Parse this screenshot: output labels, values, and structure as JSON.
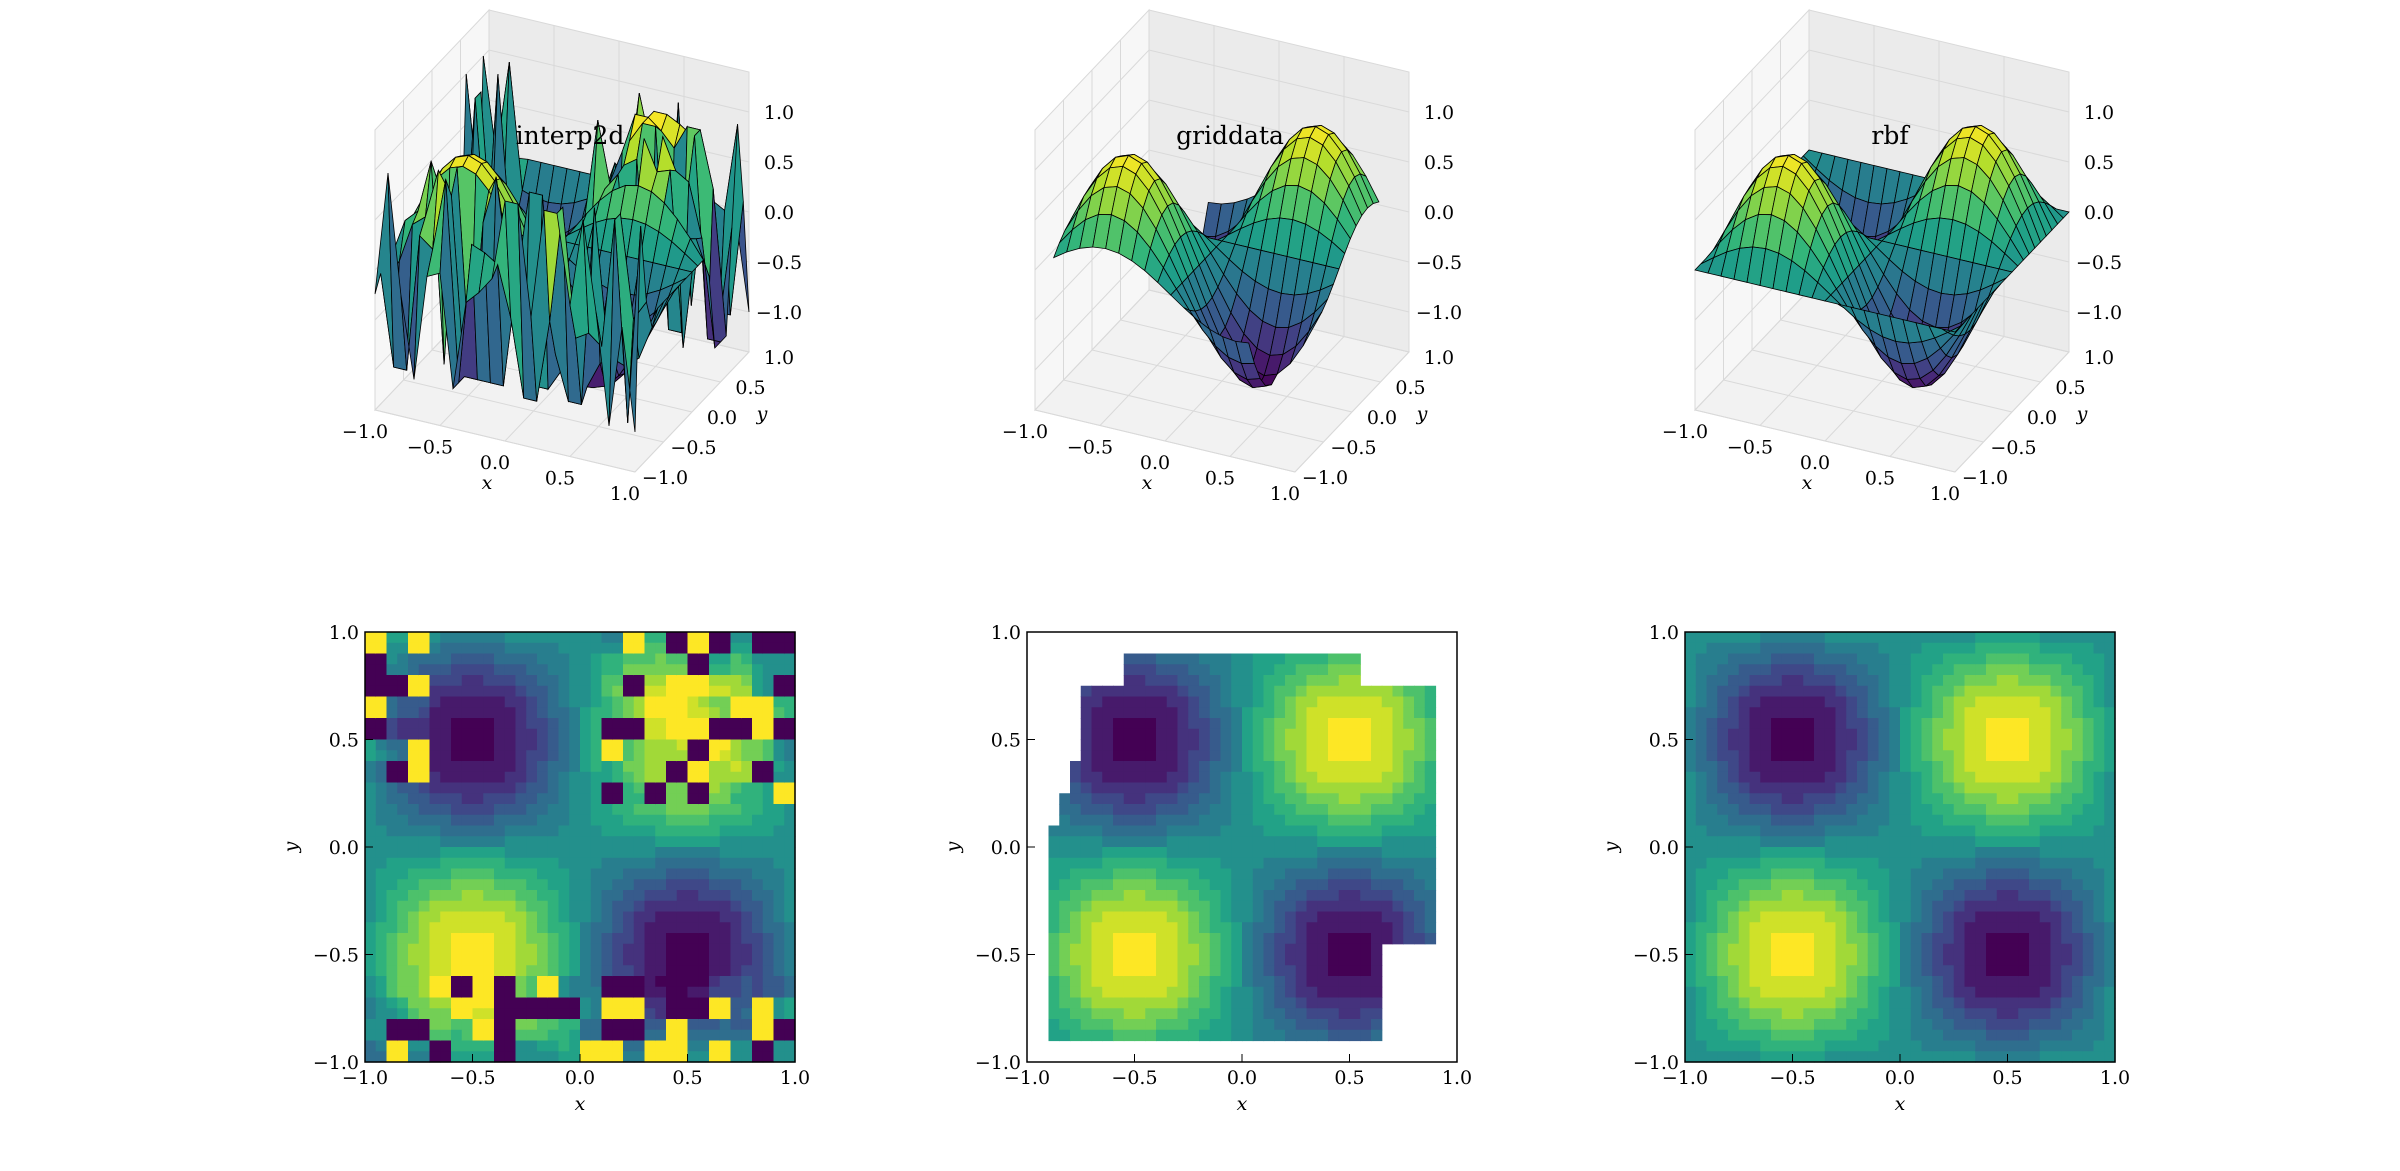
{
  "chart_data": [
    {
      "type": "surface3d",
      "title": "interp2d",
      "method": "interp2d",
      "xlabel": "x",
      "ylabel": "y",
      "xticks": [
        "−1.0",
        "−0.5",
        "0.0",
        "0.5",
        "1.0"
      ],
      "yticks": [
        "−1.0",
        "−0.5",
        "0.0",
        "0.5",
        "1.0"
      ],
      "zticks": [
        "−1.0",
        "−0.5",
        "0.0",
        "0.5",
        "1.0"
      ],
      "xlim": [
        -1,
        1
      ],
      "ylim": [
        -1,
        1
      ],
      "zlim": [
        -1,
        1
      ],
      "function": "sin(pi*x)*sin(pi*y) with spiky interpolation artifacts",
      "colormap": "viridis"
    },
    {
      "type": "surface3d",
      "title": "griddata",
      "method": "griddata",
      "xlabel": "x",
      "ylabel": "y",
      "xticks": [
        "−1.0",
        "−0.5",
        "0.0",
        "0.5",
        "1.0"
      ],
      "yticks": [
        "−1.0",
        "−0.5",
        "0.0",
        "0.5",
        "1.0"
      ],
      "zticks": [
        "−1.0",
        "−0.5",
        "0.0",
        "0.5",
        "1.0"
      ],
      "xlim": [
        -1,
        1
      ],
      "ylim": [
        -1,
        1
      ],
      "zlim": [
        -1,
        1
      ],
      "function": "sin(pi*x)*sin(pi*y) inside convex hull of samples",
      "colormap": "viridis"
    },
    {
      "type": "surface3d",
      "title": "rbf",
      "method": "rbf",
      "xlabel": "x",
      "ylabel": "y",
      "xticks": [
        "−1.0",
        "−0.5",
        "0.0",
        "0.5",
        "1.0"
      ],
      "yticks": [
        "−1.0",
        "−0.5",
        "0.0",
        "0.5",
        "1.0"
      ],
      "zticks": [
        "−1.0",
        "−0.5",
        "0.0",
        "0.5",
        "1.0"
      ],
      "xlim": [
        -1,
        1
      ],
      "ylim": [
        -1,
        1
      ],
      "zlim": [
        -1,
        1
      ],
      "function": "sin(pi*x)*sin(pi*y) smooth",
      "colormap": "viridis"
    },
    {
      "type": "heatmap",
      "method": "interp2d",
      "xlabel": "x",
      "ylabel": "y",
      "xticks": [
        "−1.0",
        "−0.5",
        "0.0",
        "0.5",
        "1.0"
      ],
      "yticks": [
        "−1.0",
        "−0.5",
        "0.0",
        "0.5",
        "1.0"
      ],
      "xlim": [
        -1,
        1
      ],
      "ylim": [
        -1,
        1
      ],
      "levels": 15,
      "colormap": "viridis"
    },
    {
      "type": "heatmap",
      "method": "griddata",
      "xlabel": "x",
      "ylabel": "y",
      "xticks": [
        "−1.0",
        "−0.5",
        "0.0",
        "0.5",
        "1.0"
      ],
      "yticks": [
        "−1.0",
        "−0.5",
        "0.0",
        "0.5",
        "1.0"
      ],
      "xlim": [
        -1,
        1
      ],
      "ylim": [
        -1,
        1
      ],
      "levels": 15,
      "colormap": "viridis"
    },
    {
      "type": "heatmap",
      "method": "rbf",
      "xlabel": "x",
      "ylabel": "y",
      "xticks": [
        "−1.0",
        "−0.5",
        "0.0",
        "0.5",
        "1.0"
      ],
      "yticks": [
        "−1.0",
        "−0.5",
        "0.0",
        "0.5",
        "1.0"
      ],
      "xlim": [
        -1,
        1
      ],
      "ylim": [
        -1,
        1
      ],
      "levels": 15,
      "colormap": "viridis"
    }
  ],
  "colors": {
    "viridis": [
      "#440154",
      "#482878",
      "#3e4a89",
      "#31688e",
      "#26828e",
      "#1f9e89",
      "#35b779",
      "#6ece58",
      "#b5de2b",
      "#fde725"
    ],
    "pane": "#f2f2f2",
    "grid": "#d9d9d9",
    "edge": "#000000"
  }
}
